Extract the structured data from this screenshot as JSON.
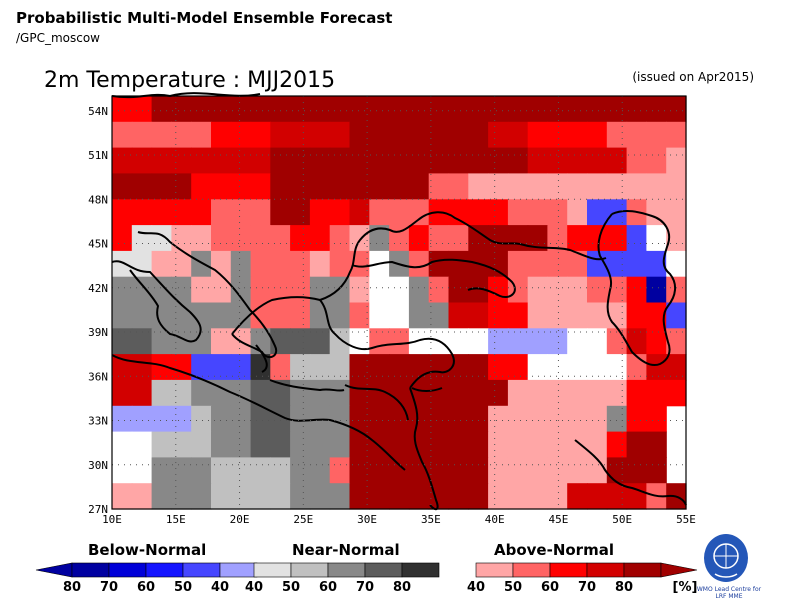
{
  "header": {
    "title": "Probabilistic Multi-Model Ensemble Forecast",
    "subtitle": "/GPC_moscow"
  },
  "map": {
    "title": "2m Temperature : MJJ2015",
    "issued": "(issued on Apr2015)",
    "lon_labels": [
      "10E",
      "15E",
      "20E",
      "25E",
      "30E",
      "35E",
      "40E",
      "45E",
      "50E",
      "55E"
    ],
    "lat_labels": [
      "54N",
      "51N",
      "48N",
      "45N",
      "42N",
      "39N",
      "36N",
      "33N",
      "30N",
      "27N"
    ],
    "lon_range": [
      10,
      55
    ],
    "lat_range": [
      27,
      55
    ],
    "grid_lines": true,
    "cell_size_deg": 2.5,
    "rows_north_to_south": [
      "ccDDDDDDDDDDDDDDDDDDDDDDDDDDD",
      "bbbbbcccddddDDDDDDDddccccbbbb",
      "ddddddddDDDDDDDDDDDDDdddddbba",
      "DDDDccccDDDDDDDDbbaaaaaaaaaaa",
      "cccccbbbDDccdbbbccccbbbaBBbaa",
      "cggaabbbbccbaMbcbbDDDDbcccBWa",
      "ggaaMaMbbbabbWMbDDDDbbbbBBBBW",
      "mmmmaaMbbbMMaWWMbDDcbaaabbcCb",
      "mmmmMMMbbbMMbWWMMddccaaaaaccB",
      "ssmmmaamHHHhWbbWWWWSSSSWWbdcb",
      "ddccBBB~bhhhDDDDDDDccWWWWWbdd",
      "ddhhmmmrrMMMDDDDDDDDaaaaaaccc",
      "QQQQhmmHHMMMDDDDDDDaaaaaaMcc",
      "WWhhhmmHHMMMDDDDDDDaaaaaacDD",
      "WWmmmhhhhMMbDDDDDDDaaaaaaDDD",
      "aammmhhhhMMMDDDDDDDaaaaddddbD"
    ],
    "region_labels": []
  },
  "legend": {
    "below_label": "Below-Normal",
    "near_label": "Near-Normal",
    "above_label": "Above-Normal",
    "below_ticks": [
      "80",
      "70",
      "60",
      "50",
      "40"
    ],
    "near_ticks": [
      "40",
      "50",
      "60",
      "70",
      "80"
    ],
    "above_ticks": [
      "40",
      "50",
      "60",
      "70",
      "80"
    ],
    "unit": "[%]",
    "below_colors": [
      "#0000a0",
      "#0000d8",
      "#1414ff",
      "#4646ff",
      "#a0a0ff"
    ],
    "near_colors": [
      "#e2e2e2",
      "#c0c0c0",
      "#888888",
      "#5c5c5c",
      "#303030"
    ],
    "above_colors": [
      "#ffa6a6",
      "#ff6464",
      "#ff0000",
      "#d20000",
      "#a00000"
    ]
  },
  "logo": {
    "line1": "WMO Lead Centre for",
    "line2": "LRF MME"
  }
}
